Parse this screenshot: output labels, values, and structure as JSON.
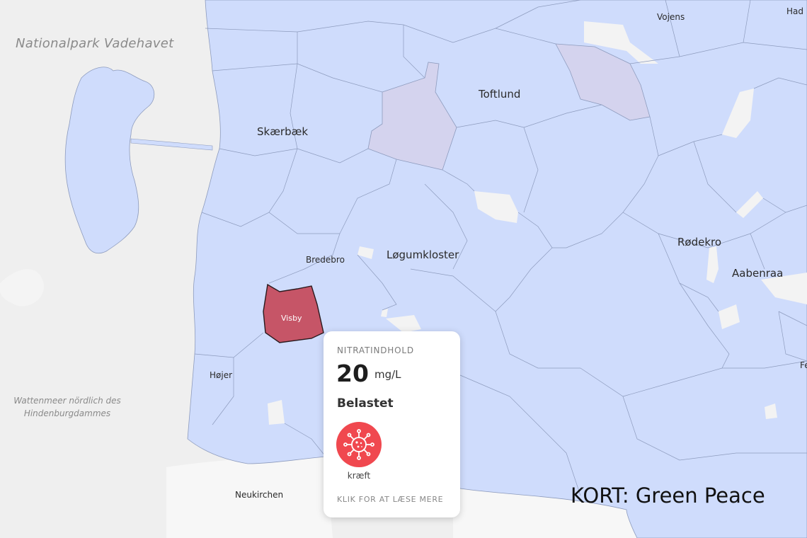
{
  "map": {
    "sea_labels": {
      "nationalpark": "Nationalpark Vadehavet",
      "wattenmeer_line1": "Wattenmeer nördlich des",
      "wattenmeer_line2": "Hindenburgdammes"
    },
    "places": {
      "vojens": "Vojens",
      "had": "Had",
      "toftlund": "Toftlund",
      "skaerbaek": "Skærbæk",
      "bredebro": "Bredebro",
      "logumkloster": "Løgumkloster",
      "rodekro": "Rødekro",
      "aabenraa": "Aabenraa",
      "hojer": "Højer",
      "neukirchen": "Neukirchen",
      "fe": "Fe"
    },
    "selected_area": {
      "name": "Visby",
      "color": "#c65567"
    },
    "colors": {
      "land": "#cfdcfc",
      "border": "#8d9bbd",
      "lavender": "#d4d3ee",
      "sea": "#efefef",
      "germany": "#f7f7f7",
      "white_patch": "#f3f3f3"
    }
  },
  "popup": {
    "heading": "NITRATINDHOLD",
    "value": "20",
    "unit": "mg/L",
    "status": "Belastet",
    "icon": "virus-icon",
    "icon_color": "#f0484f",
    "icon_label": "kræft",
    "link": "KLIK FOR AT LÆSE MERE"
  },
  "credit": "KORT: Green Peace"
}
